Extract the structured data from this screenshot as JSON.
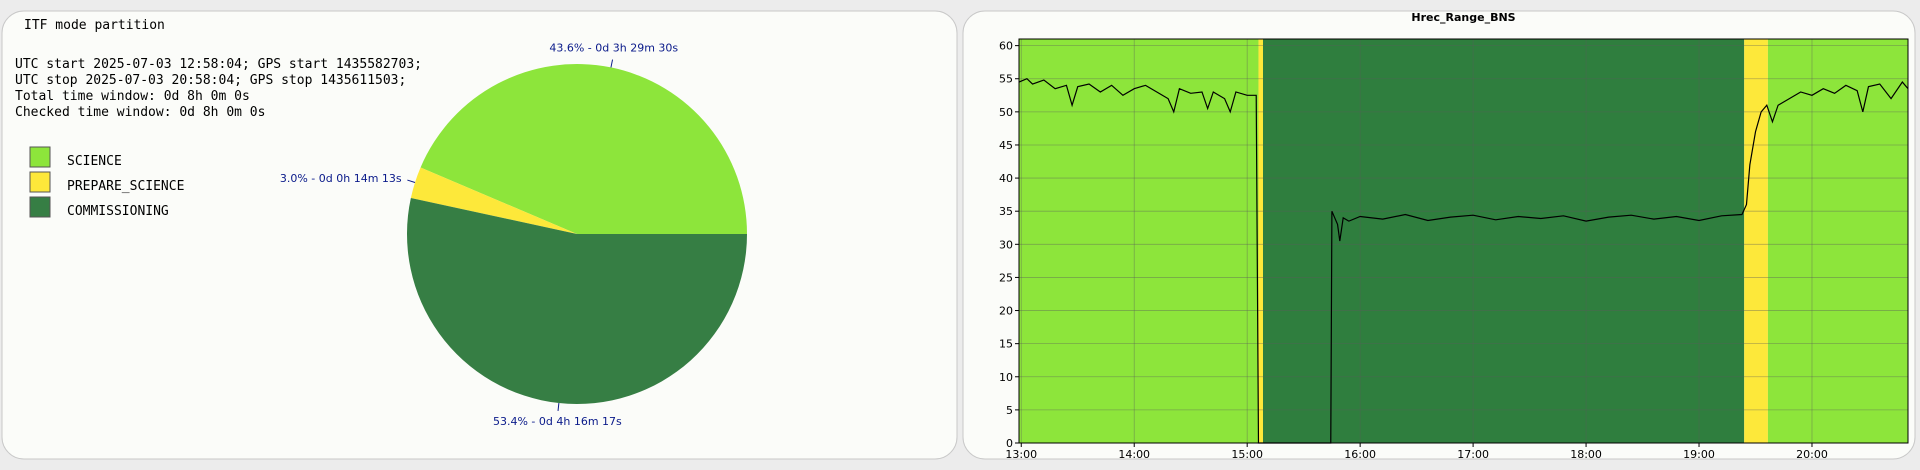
{
  "chart_data": [
    {
      "type": "pie",
      "title": "ITF mode partition",
      "annotations": [
        "UTC start 2025-07-03 12:58:04; GPS start 1435582703;",
        "UTC stop 2025-07-03 20:58:04; GPS stop 1435611503;",
        "Total time window: 0d 8h 0m 0s",
        "Checked time window: 0d 8h 0m 0s"
      ],
      "categories": [
        "SCIENCE",
        "PREPARE_SCIENCE",
        "COMMISSIONING"
      ],
      "values": [
        43.6,
        3.0,
        53.4
      ],
      "value_labels": [
        "43.6% - 0d 3h 29m 30s",
        "3.0% - 0d 0h 14m 13s",
        "53.4% - 0d 4h 16m 17s"
      ],
      "colors": [
        "#8de53b",
        "#fde83a",
        "#367e44"
      ]
    },
    {
      "type": "line",
      "title": "Hrec_Range_BNS",
      "xlim": [
        12.98,
        20.85
      ],
      "xticks": [
        {
          "value": 13,
          "label": "13:00"
        },
        {
          "value": 14,
          "label": "14:00"
        },
        {
          "value": 15,
          "label": "15:00"
        },
        {
          "value": 16,
          "label": "16:00"
        },
        {
          "value": 17,
          "label": "17:00"
        },
        {
          "value": 18,
          "label": "18:00"
        },
        {
          "value": 19,
          "label": "19:00"
        },
        {
          "value": 20,
          "label": "20:00"
        }
      ],
      "ylim": [
        0,
        61
      ],
      "yticks": [
        0,
        5,
        10,
        15,
        20,
        25,
        30,
        35,
        40,
        45,
        50,
        55,
        60
      ],
      "grid": true,
      "bands": [
        {
          "start": 12.98,
          "end": 15.1,
          "color": "#8de53b"
        },
        {
          "start": 15.1,
          "end": 15.14,
          "color": "#fde83a"
        },
        {
          "start": 15.14,
          "end": 19.4,
          "color": "#2f7e3e"
        },
        {
          "start": 19.4,
          "end": 19.61,
          "color": "#fde83a"
        },
        {
          "start": 19.61,
          "end": 20.85,
          "color": "#8de53b"
        }
      ],
      "series": [
        {
          "color": "#000000",
          "x": [
            12.98,
            13.05,
            13.1,
            13.2,
            13.3,
            13.4,
            13.45,
            13.5,
            13.6,
            13.7,
            13.8,
            13.9,
            14.0,
            14.1,
            14.2,
            14.3,
            14.35,
            14.4,
            14.5,
            14.6,
            14.65,
            14.7,
            14.8,
            14.85,
            14.9,
            15.0,
            15.08,
            15.1,
            15.74,
            15.75,
            15.8,
            15.82,
            15.85,
            15.9,
            16.0,
            16.2,
            16.4,
            16.6,
            16.8,
            17.0,
            17.2,
            17.4,
            17.6,
            17.8,
            18.0,
            18.2,
            18.4,
            18.6,
            18.8,
            19.0,
            19.2,
            19.38,
            19.42,
            19.45,
            19.5,
            19.55,
            19.6,
            19.65,
            19.7,
            19.8,
            19.9,
            20.0,
            20.1,
            20.2,
            20.3,
            20.4,
            20.45,
            20.5,
            20.6,
            20.7,
            20.8,
            20.85
          ],
          "values": [
            54.5,
            55,
            54.2,
            54.8,
            53.5,
            54,
            51,
            53.8,
            54.2,
            53,
            54,
            52.5,
            53.5,
            54,
            53,
            52,
            50,
            53.5,
            52.8,
            53,
            50.5,
            53,
            52,
            50,
            53,
            52.5,
            52.5,
            0,
            0,
            35,
            33,
            30.5,
            34,
            33.5,
            34.2,
            33.8,
            34.5,
            33.6,
            34.1,
            34.4,
            33.7,
            34.2,
            33.9,
            34.3,
            33.5,
            34.1,
            34.4,
            33.8,
            34.2,
            33.6,
            34.3,
            34.5,
            36,
            42,
            47,
            50,
            51,
            48.5,
            51,
            52,
            53,
            52.5,
            53.5,
            52.8,
            54,
            53.2,
            50,
            53.8,
            54.2,
            52,
            54.5,
            53.5
          ]
        }
      ]
    }
  ]
}
